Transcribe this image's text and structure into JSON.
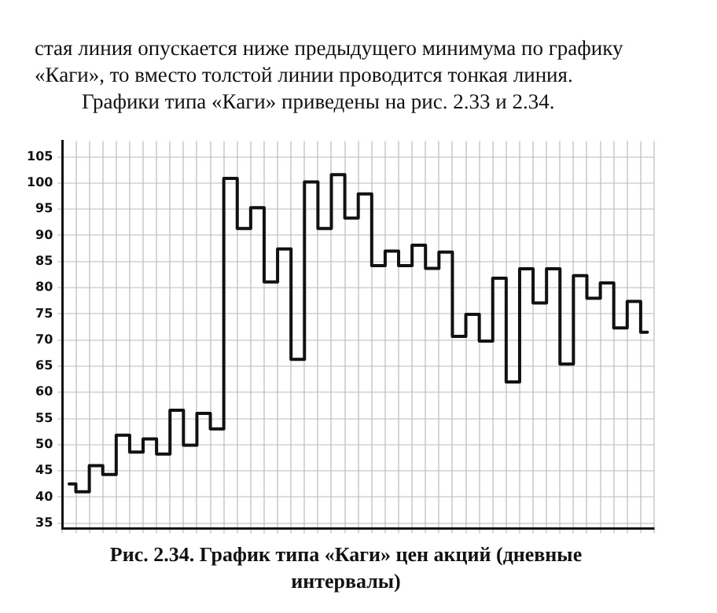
{
  "chart_data": {
    "type": "step",
    "title": "Рис. 2.34. График типа «Каги» цен акций (дневные интервалы)",
    "annotations": [
      "стая линия опускается ниже предыдущего минимума по графику «Каги», то вместо толстой линии проводится тонкая линия.",
      "Графики типа «Каги» приведены на рис. 2.33 и 2.34."
    ],
    "categories": [
      null,
      null,
      null,
      null,
      null,
      null,
      null,
      null,
      null,
      null,
      null,
      null,
      null,
      null,
      null,
      null,
      null,
      null,
      null,
      null,
      null,
      null,
      null,
      null,
      null,
      null,
      null,
      null,
      null,
      null,
      null,
      null,
      null,
      null,
      null,
      null,
      null,
      null,
      null,
      null,
      null,
      null,
      null,
      null
    ],
    "series": [
      {
        "color": "#111111",
        "values": [
          42.5,
          41,
          46,
          44.3,
          51.8,
          48.6,
          51.1,
          48.2,
          56.6,
          49.9,
          56,
          53,
          100.9,
          91.3,
          95.3,
          81.1,
          87.4,
          66.3,
          100.2,
          91.3,
          101.6,
          93.3,
          97.9,
          84.2,
          87,
          84.2,
          88.1,
          83.7,
          86.8,
          70.7,
          74.9,
          69.8,
          81.8,
          62,
          83.6,
          77.1,
          83.6,
          65.4,
          82.3,
          78,
          80.9,
          72.3,
          77.4,
          71.5
        ]
      }
    ],
    "ylim": [
      34,
      108
    ],
    "yticks": [
      35,
      40,
      45,
      50,
      55,
      60,
      65,
      70,
      75,
      80,
      85,
      90,
      95,
      100,
      105
    ],
    "grid": true,
    "legend": false,
    "marker": "none",
    "line_style": "solid",
    "tick_labels": "y"
  }
}
